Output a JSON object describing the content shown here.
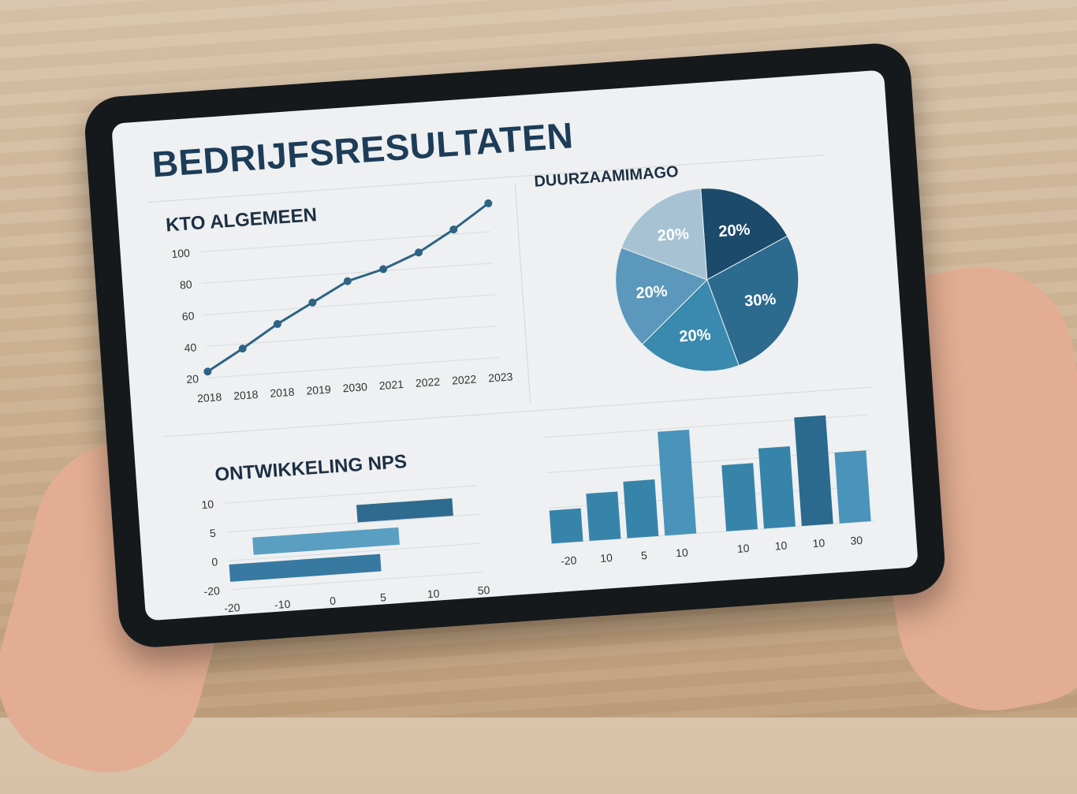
{
  "dashboard": {
    "title": "BEDRIJFSRESULTATEN"
  },
  "chart_data": [
    {
      "type": "line",
      "title": "KTO ALGEMEEN",
      "x": [
        "2018",
        "2018",
        "2018",
        "2019",
        "2030",
        "2021",
        "2022",
        "2022",
        "2023"
      ],
      "values": [
        24,
        37,
        51,
        63,
        75,
        81,
        90,
        103,
        118
      ],
      "yticks": [
        20,
        40,
        60,
        80,
        100
      ],
      "ylim": [
        20,
        100
      ],
      "grid": true,
      "color": "#2d6384"
    },
    {
      "type": "pie",
      "title": "DUURZAAMIMAGO",
      "labels": [
        "20%",
        "30%",
        "20%",
        "20%",
        "20%"
      ],
      "values": [
        20,
        30,
        20,
        20,
        20
      ],
      "colors": [
        "#1c4a6b",
        "#2c6a8e",
        "#3a89ae",
        "#5b98bb",
        "#a6c2d3"
      ]
    },
    {
      "type": "bar",
      "orientation": "horizontal",
      "title": "ONTWIKKELING NPS",
      "yticks": [
        "10",
        "5",
        "0",
        "-20"
      ],
      "xticks": [
        "-20",
        "-10",
        "0",
        "5",
        "10",
        "50"
      ],
      "bars": [
        {
          "start": -20,
          "end": 5
        },
        {
          "start": -15,
          "end": 7
        },
        {
          "start": 3,
          "end": 30
        }
      ],
      "color": "#3b7fa3"
    },
    {
      "type": "bar",
      "categories": [
        "-20",
        "10",
        "5",
        "10",
        "10",
        "10",
        "10",
        "30"
      ],
      "values": [
        7,
        10,
        12,
        22,
        14,
        17,
        23,
        15
      ],
      "color": "#3784aa"
    }
  ]
}
